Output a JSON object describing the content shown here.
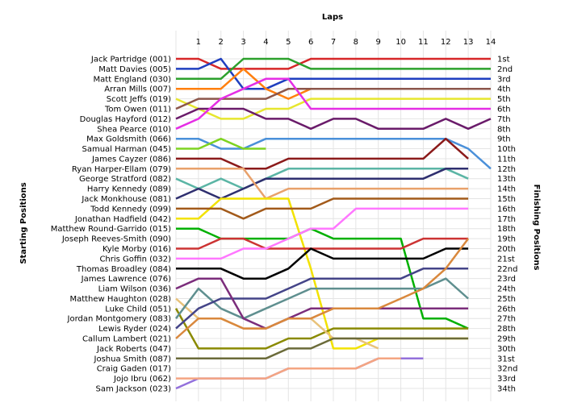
{
  "chart_data": {
    "type": "line",
    "title": "",
    "xlabel": "Laps",
    "ylabel": "Starting Positions",
    "y2label": "Finishing Positions",
    "x": [
      1,
      2,
      3,
      4,
      5,
      6,
      7,
      8,
      9,
      10,
      11,
      12,
      13,
      14
    ],
    "y_direction": "inverted",
    "grid": true,
    "legend": "none",
    "starting_labels": [
      "Jack Partridge (001)",
      "Matt Davies (005)",
      "Matt England (030)",
      "Arran Mills (007)",
      "Scott Jeffs (019)",
      "Tom Owen (011)",
      "Douglas Hayford (012)",
      "Shea Pearce (010)",
      "Max Goldsmith (066)",
      "Samual Harman (045)",
      "James Cayzer (086)",
      "Ryan Harper-Ellam (079)",
      "George Stratford (082)",
      "Harry Kennedy (089)",
      "Jack Monkhouse (081)",
      "Todd Kennedy (099)",
      "Jonathan Hadfield (042)",
      "Matthew Round-Garrido (015)",
      "Joseph Reeves-Smith (090)",
      "Kyle Morby (016)",
      "Chris Goffin (032)",
      "Thomas Broadley (084)",
      "James Lawrence (076)",
      "Liam Wilson (036)",
      "Matthew Haughton (028)",
      "Luke Child (051)",
      "Jordan Montgomery (083)",
      "Lewis Ryder (024)",
      "Callum Lambert (021)",
      "Jack Roberts (047)",
      "Joshua Smith (087)",
      "Craig Gaden (017)",
      "Jojo Ibru (062)",
      "Sam Jackson (023)"
    ],
    "finishing_labels": [
      "1st",
      "2nd",
      "3rd",
      "4th",
      "5th",
      "6th",
      "7th",
      "8th",
      "9th",
      "10th",
      "11th",
      "12th",
      "13th",
      "14th",
      "15th",
      "16th",
      "17th",
      "18th",
      "19th",
      "20th",
      "21st",
      "22nd",
      "23rd",
      "24th",
      "25th",
      "26th",
      "27th",
      "28th",
      "29th",
      "30th",
      "31st",
      "32nd",
      "33rd",
      "34th"
    ],
    "series": [
      {
        "color": "#d62728",
        "start": 1,
        "positions": [
          1,
          2,
          2,
          2,
          2,
          1,
          1,
          1,
          1,
          1,
          1,
          1,
          1,
          1
        ]
      },
      {
        "color": "#1f3fbf",
        "start": 2,
        "positions": [
          2,
          1,
          4,
          4,
          3,
          3,
          3,
          3,
          3,
          3,
          3,
          3,
          3,
          3
        ]
      },
      {
        "color": "#2ca02c",
        "start": 3,
        "positions": [
          3,
          3,
          1,
          1,
          1,
          2,
          2,
          2,
          2,
          2,
          2,
          2,
          2,
          2
        ]
      },
      {
        "color": "#ff7f0e",
        "start": 4,
        "positions": [
          4,
          4,
          2,
          4,
          5,
          4,
          4,
          4,
          4,
          4,
          4,
          4,
          4,
          4
        ]
      },
      {
        "color": "#e6e62e",
        "start": 5,
        "positions": [
          6,
          7,
          7,
          6,
          6,
          5,
          5,
          5,
          5,
          5,
          5,
          5,
          5,
          5
        ]
      },
      {
        "color": "#8c564b",
        "start": 6,
        "positions": [
          5,
          5,
          5,
          5,
          4,
          4,
          4,
          4,
          4,
          4,
          4,
          4,
          4,
          4
        ]
      },
      {
        "color": "#6a1b6a",
        "start": 7,
        "positions": [
          6,
          6,
          6,
          7,
          7,
          8,
          7,
          7,
          8,
          8,
          8,
          7,
          8,
          7
        ]
      },
      {
        "color": "#e52ee5",
        "start": 8,
        "positions": [
          7,
          5,
          4,
          3,
          3,
          6,
          6,
          6,
          6,
          6,
          6,
          6,
          6,
          6
        ]
      },
      {
        "color": "#4a90d9",
        "start": 9,
        "positions": [
          9,
          10,
          10,
          9,
          9,
          9,
          9,
          9,
          9,
          9,
          9,
          9,
          10,
          12
        ]
      },
      {
        "color": "#7ed321",
        "start": 10,
        "positions": [
          10,
          9,
          10,
          10
        ]
      },
      {
        "color": "#8b1a1a",
        "start": 11,
        "positions": [
          11,
          11,
          12,
          12,
          11,
          11,
          11,
          11,
          11,
          11,
          11,
          9,
          11
        ]
      },
      {
        "color": "#5bb5a5",
        "start": 13,
        "positions": [
          14,
          13,
          14,
          13,
          12,
          12,
          12,
          12,
          12,
          12,
          12,
          12,
          13
        ]
      },
      {
        "color": "#2f2f6f",
        "start": 15,
        "positions": [
          14,
          15,
          14,
          13,
          13,
          13,
          13,
          13,
          13,
          13,
          13,
          12,
          12
        ]
      },
      {
        "color": "#e8a16b",
        "start": 12,
        "positions": [
          12,
          12,
          12,
          15,
          14,
          14,
          14,
          14,
          14,
          14,
          14,
          14,
          14
        ]
      },
      {
        "color": "#f2e200",
        "start": 17,
        "positions": [
          17,
          15,
          15,
          15,
          15,
          22,
          30,
          30,
          29,
          29,
          29,
          29,
          29
        ]
      },
      {
        "color": "#00b000",
        "start": 18,
        "positions": [
          18,
          19,
          19,
          19,
          19,
          18,
          19,
          19,
          19,
          19,
          27,
          27,
          28
        ]
      },
      {
        "color": "#a25a1a",
        "start": 16,
        "positions": [
          16,
          16,
          17,
          16,
          16,
          16,
          15,
          15,
          15,
          15,
          15,
          15,
          15
        ]
      },
      {
        "color": "#cc3333",
        "start": 20,
        "positions": [
          20,
          19,
          19,
          20,
          20,
          20,
          20,
          20,
          20,
          20,
          19,
          19,
          19
        ]
      },
      {
        "color": "#ff77ff",
        "start": 21,
        "positions": [
          21,
          21,
          20,
          20,
          19,
          18,
          18,
          16,
          16,
          16,
          16,
          16,
          16
        ]
      },
      {
        "color": "#000000",
        "start": 22,
        "positions": [
          22,
          22,
          23,
          23,
          22,
          20,
          21,
          21,
          21,
          21,
          21,
          20,
          20
        ]
      },
      {
        "color": "#8a8a00",
        "start": 26,
        "positions": [
          30,
          30,
          30,
          30,
          29,
          29,
          28,
          28,
          28,
          28,
          28,
          28,
          28
        ]
      },
      {
        "color": "#e8c27a",
        "start": 25,
        "positions": [
          27,
          27,
          28,
          28,
          27,
          27,
          29,
          29,
          30
        ]
      },
      {
        "color": "#9370db",
        "start": 34,
        "positions": [
          33,
          33,
          33,
          33,
          32,
          32,
          32,
          32,
          31,
          31,
          31
        ]
      },
      {
        "color": "#f4a582",
        "start": 33,
        "positions": [
          33,
          33,
          33,
          33,
          32,
          32,
          32,
          32,
          31,
          31
        ]
      },
      {
        "color": "#5f8f8f",
        "start": 27,
        "positions": [
          24,
          26,
          27,
          26,
          25,
          24,
          24,
          24,
          24,
          24,
          24,
          23,
          25
        ]
      },
      {
        "color": "#444488",
        "start": 28,
        "positions": [
          26,
          25,
          25,
          25,
          24,
          23,
          23,
          23,
          23,
          23,
          22,
          22,
          22
        ]
      },
      {
        "color": "#7b2d7b",
        "start": 24,
        "positions": [
          23,
          23,
          27,
          28,
          27,
          26,
          26,
          26,
          26,
          26,
          26,
          26,
          26
        ]
      },
      {
        "color": "#d9883d",
        "start": 29,
        "positions": [
          27,
          27,
          28,
          28,
          27,
          27,
          26,
          26,
          26,
          25,
          24,
          22,
          19
        ]
      },
      {
        "color": "#6b6b3a",
        "start": 31,
        "positions": [
          31,
          31,
          31,
          31,
          30,
          30,
          29,
          29,
          29,
          29,
          29,
          29,
          29
        ]
      }
    ]
  }
}
